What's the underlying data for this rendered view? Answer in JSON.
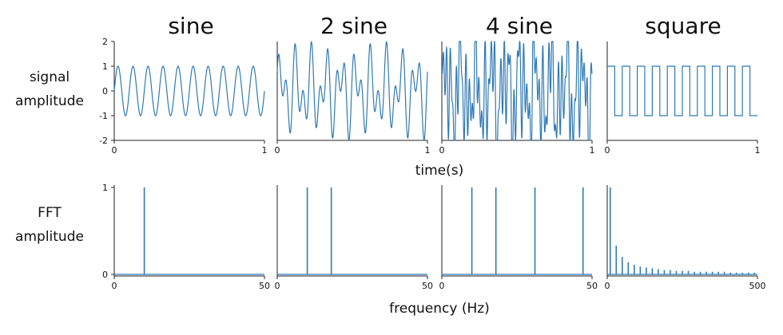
{
  "columns": [
    "sine",
    "2 sine",
    "4 sine",
    "square"
  ],
  "row_labels": {
    "signal": [
      "signal",
      "amplitude"
    ],
    "fft": [
      "FFT",
      "amplitude"
    ]
  },
  "xlabels": {
    "time": "time(s)",
    "freq": "frequency (Hz)"
  },
  "colors": {
    "series": "#2f7ab6",
    "axis": "#222222"
  },
  "chart_data": [
    {
      "type": "line",
      "panel": "signal",
      "column": "sine",
      "xlim": [
        0,
        1
      ],
      "ylim": [
        -2,
        2
      ],
      "xticks": [
        0,
        1
      ],
      "yticks": [
        -2,
        -1,
        0,
        1,
        2
      ],
      "series": [
        {
          "function": "sin",
          "components": [
            {
              "freq_hz": 10,
              "amp": 1
            }
          ]
        }
      ]
    },
    {
      "type": "line",
      "panel": "signal",
      "column": "2 sine",
      "xlim": [
        0,
        1
      ],
      "ylim": [
        -2,
        2
      ],
      "xticks": [
        0,
        1
      ],
      "series": [
        {
          "function": "sin",
          "components": [
            {
              "freq_hz": 10,
              "amp": 1
            },
            {
              "freq_hz": 18,
              "amp": 1
            }
          ]
        }
      ]
    },
    {
      "type": "line",
      "panel": "signal",
      "column": "4 sine",
      "xlim": [
        0,
        1
      ],
      "ylim": [
        -2,
        2
      ],
      "xticks": [
        0,
        1
      ],
      "series": [
        {
          "function": "sin",
          "components": [
            {
              "freq_hz": 10,
              "amp": 1
            },
            {
              "freq_hz": 18,
              "amp": 1
            },
            {
              "freq_hz": 31,
              "amp": 1
            },
            {
              "freq_hz": 47,
              "amp": 1
            }
          ]
        }
      ]
    },
    {
      "type": "line",
      "panel": "signal",
      "column": "square",
      "xlim": [
        0,
        1
      ],
      "ylim": [
        -2,
        2
      ],
      "xticks": [
        0,
        1
      ],
      "series": [
        {
          "function": "square",
          "freq_hz": 10,
          "amp": 1
        }
      ]
    },
    {
      "type": "bar",
      "panel": "fft",
      "column": "sine",
      "xlim": [
        0,
        50
      ],
      "ylim": [
        0,
        1
      ],
      "xticks": [
        0,
        50
      ],
      "yticks": [
        0,
        1
      ],
      "peaks": [
        {
          "x": 10,
          "y": 1
        }
      ]
    },
    {
      "type": "bar",
      "panel": "fft",
      "column": "2 sine",
      "xlim": [
        0,
        50
      ],
      "ylim": [
        0,
        1
      ],
      "xticks": [
        0,
        50
      ],
      "peaks": [
        {
          "x": 10,
          "y": 1
        },
        {
          "x": 18,
          "y": 1
        }
      ]
    },
    {
      "type": "bar",
      "panel": "fft",
      "column": "4 sine",
      "xlim": [
        0,
        50
      ],
      "ylim": [
        0,
        1
      ],
      "xticks": [
        0,
        50
      ],
      "peaks": [
        {
          "x": 10,
          "y": 1
        },
        {
          "x": 18,
          "y": 1
        },
        {
          "x": 31,
          "y": 1
        },
        {
          "x": 47,
          "y": 1
        }
      ]
    },
    {
      "type": "bar",
      "panel": "fft",
      "column": "square",
      "xlim": [
        0,
        500
      ],
      "ylim": [
        0,
        1
      ],
      "xticks": [
        0,
        500
      ],
      "peaks": [
        {
          "x": 10,
          "y": 1
        },
        {
          "x": 30,
          "y": 0.33
        },
        {
          "x": 50,
          "y": 0.2
        },
        {
          "x": 70,
          "y": 0.14
        },
        {
          "x": 90,
          "y": 0.11
        },
        {
          "x": 110,
          "y": 0.09
        },
        {
          "x": 130,
          "y": 0.08
        },
        {
          "x": 150,
          "y": 0.07
        },
        {
          "x": 170,
          "y": 0.06
        },
        {
          "x": 190,
          "y": 0.05
        },
        {
          "x": 210,
          "y": 0.05
        },
        {
          "x": 230,
          "y": 0.04
        },
        {
          "x": 250,
          "y": 0.04
        },
        {
          "x": 270,
          "y": 0.04
        },
        {
          "x": 290,
          "y": 0.03
        },
        {
          "x": 310,
          "y": 0.03
        },
        {
          "x": 330,
          "y": 0.03
        },
        {
          "x": 350,
          "y": 0.03
        },
        {
          "x": 370,
          "y": 0.03
        },
        {
          "x": 390,
          "y": 0.03
        },
        {
          "x": 410,
          "y": 0.02
        },
        {
          "x": 430,
          "y": 0.02
        },
        {
          "x": 450,
          "y": 0.02
        },
        {
          "x": 470,
          "y": 0.02
        },
        {
          "x": 490,
          "y": 0.02
        }
      ]
    }
  ]
}
